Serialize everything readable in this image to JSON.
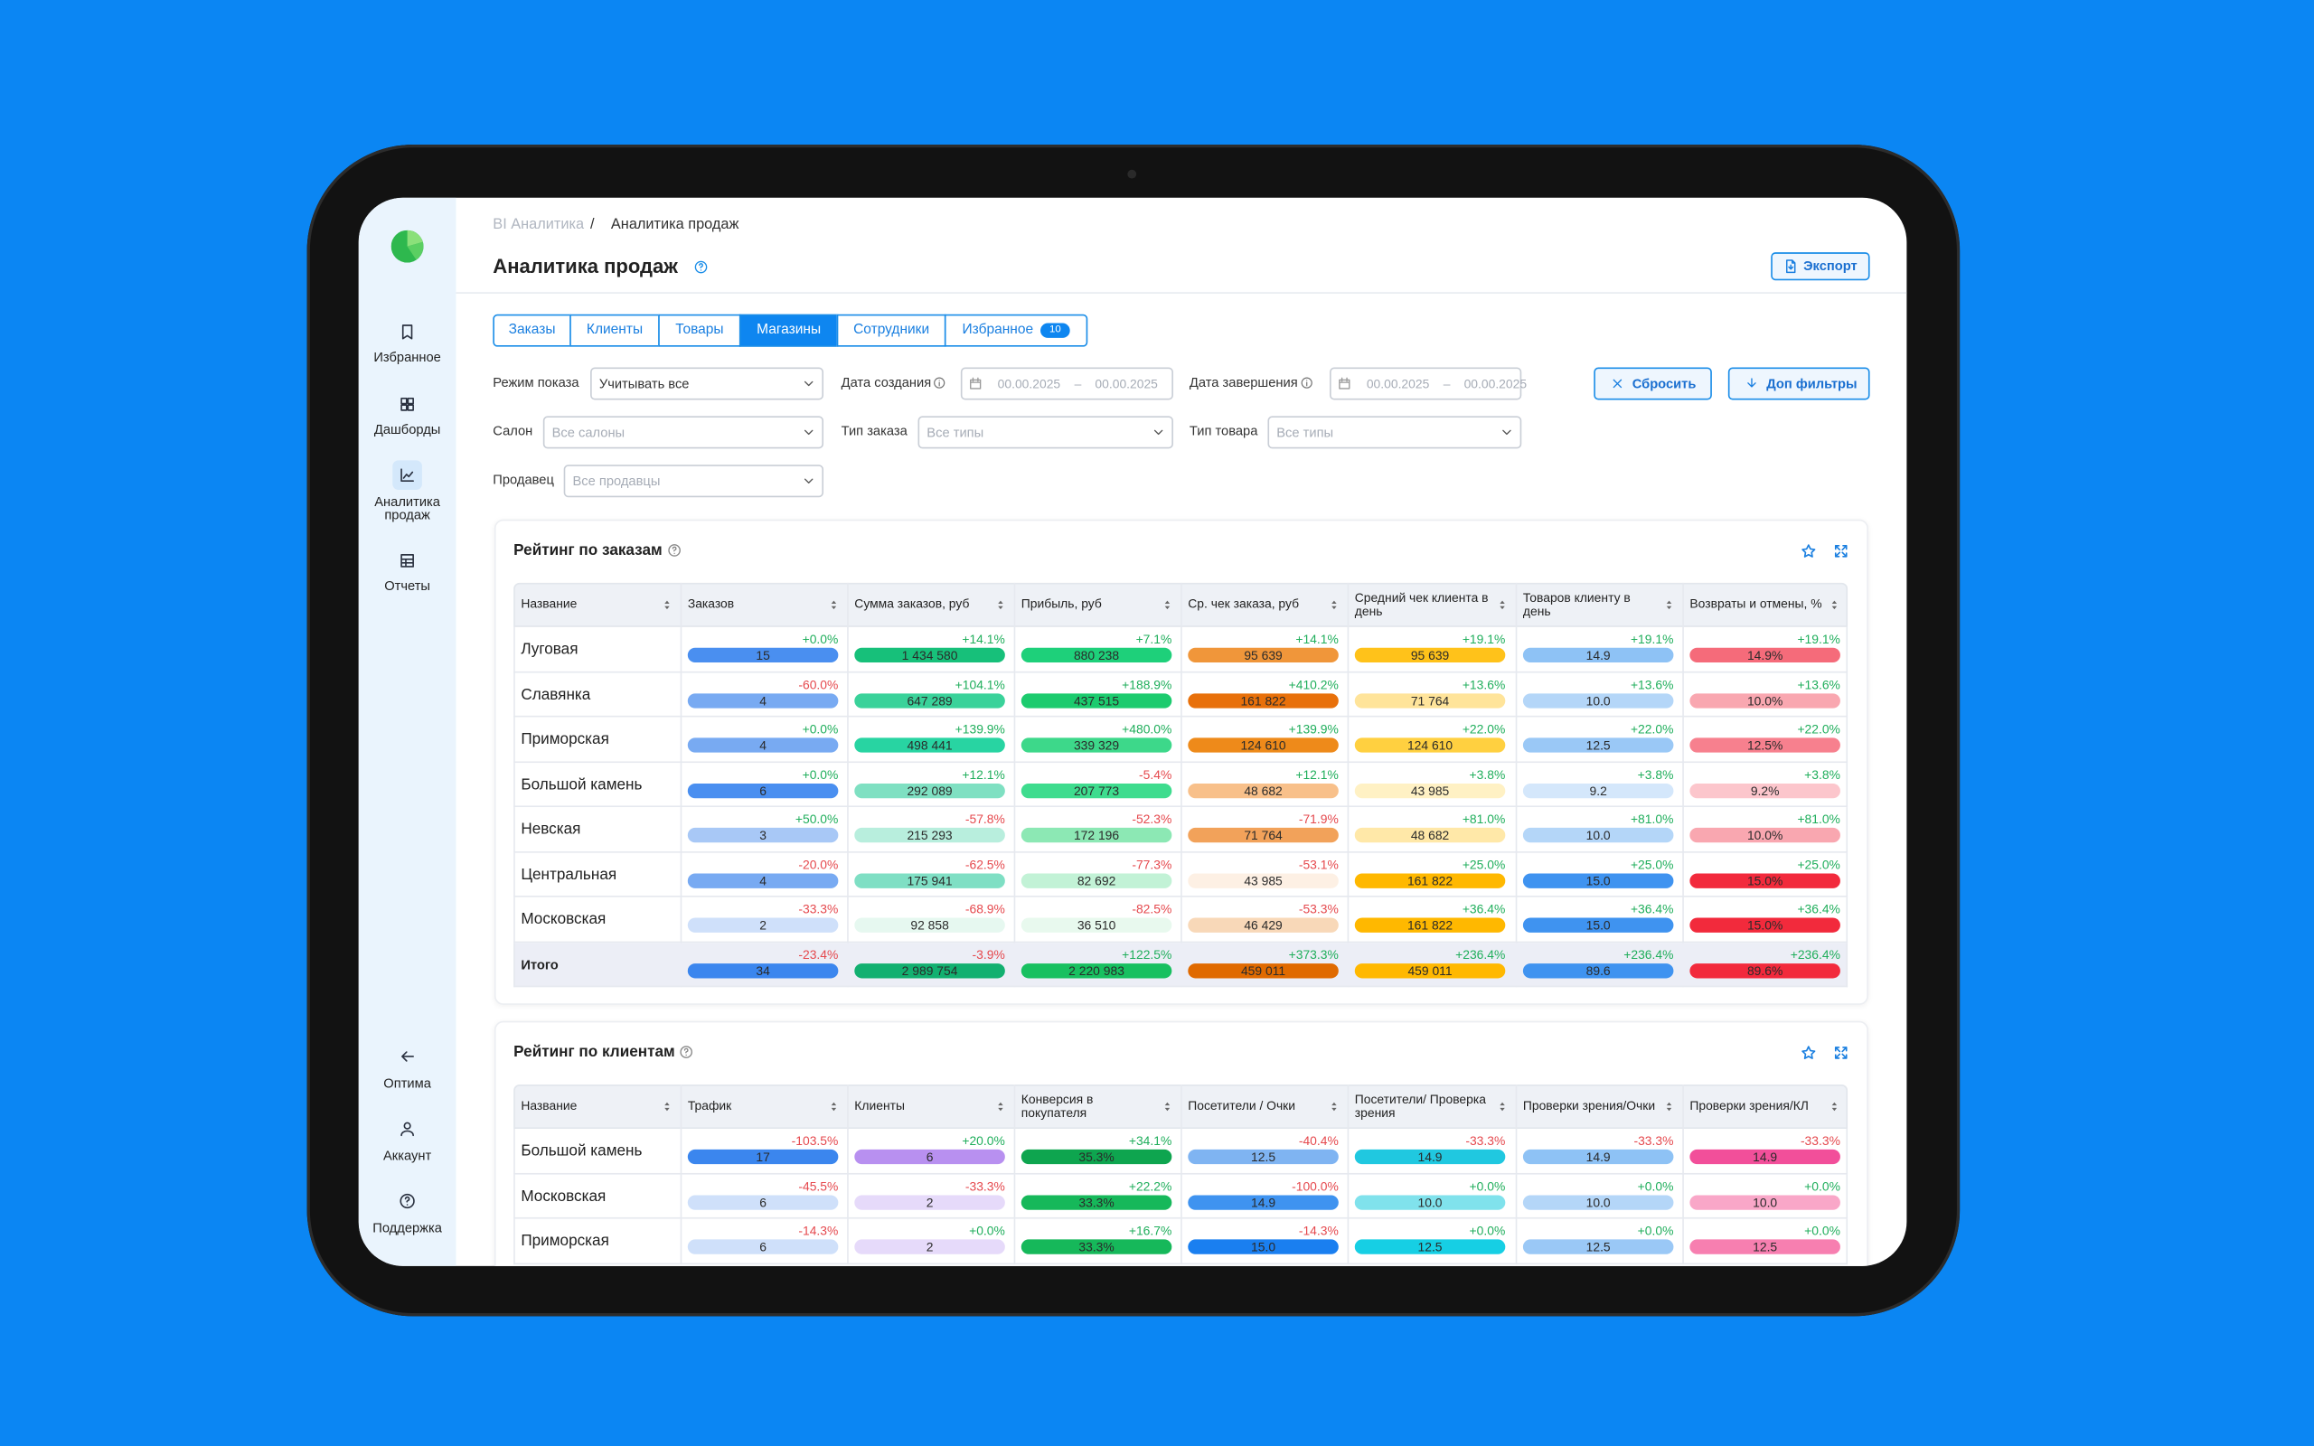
{
  "sidebar": {
    "top": [
      "Избранное",
      "Дашборды",
      "Аналитика продаж",
      "Отчеты"
    ],
    "bottom": [
      "Оптима",
      "Аккаунт",
      "Поддержка"
    ],
    "active": 2
  },
  "breadcrumb": [
    "BI Аналитика",
    "/",
    "Аналитика продаж"
  ],
  "title": "Аналитика продаж",
  "export": "Экспорт",
  "tabs": [
    "Заказы",
    "Клиенты",
    "Товары",
    "Магазины",
    "Сотрудники",
    "Избранное"
  ],
  "active_tab": 3,
  "tab_badge": "10",
  "filters": {
    "selects": [
      {
        "label": "Режим показа",
        "value": "Учитывать все"
      },
      {
        "label": "Салон",
        "value": "Все салоны"
      },
      {
        "label": "Тип заказа",
        "value": "Все типы"
      },
      {
        "label": "Тип товара",
        "value": "Все типы"
      },
      {
        "label": "Продавец",
        "value": "Все продавцы"
      }
    ],
    "dates": [
      {
        "label": "Дата создания",
        "from": "00.00.2025",
        "to": "00.00.2025"
      },
      {
        "label": "Дата завершения",
        "from": "00.00.2025",
        "to": "00.00.2025"
      }
    ],
    "range_sep": "–",
    "reset": "Сбросить",
    "more": "Доп фильтры"
  },
  "tables": [
    {
      "title": "Рейтинг по заказам",
      "columns": [
        "Название",
        "Заказов",
        "Сумма заказов, руб",
        "Прибыль, руб",
        "Ср. чек заказа, руб",
        "Средний чек клиента в день",
        "Товаров клиенту в день",
        "Возвраты и отмены, %"
      ],
      "rows": [
        {
          "name": "Луговая",
          "cells": [
            [
              "+0.0%",
              "15",
              "#4a8ff0"
            ],
            [
              "+14.1%",
              "1 434 580",
              "#17c07a"
            ],
            [
              "+7.1%",
              "880 238",
              "#1ed07a"
            ],
            [
              "+14.1%",
              "95 639",
              "#f0963a"
            ],
            [
              "+19.1%",
              "95 639",
              "#ffc21a"
            ],
            [
              "+19.1%",
              "14.9",
              "#8ec2f5"
            ],
            [
              "+19.1%",
              "14.9%",
              "#f56b7a"
            ]
          ]
        },
        {
          "name": "Славянка",
          "cells": [
            [
              "-60.0%",
              "4",
              "#78aaf2"
            ],
            [
              "+104.1%",
              "647 289",
              "#3ad29a"
            ],
            [
              "+188.9%",
              "437 515",
              "#1ccb6e"
            ],
            [
              "+410.2%",
              "161 822",
              "#e8700a"
            ],
            [
              "+13.6%",
              "71 764",
              "#ffe49a"
            ],
            [
              "+13.6%",
              "10.0",
              "#b4d6f8"
            ],
            [
              "+13.6%",
              "10.0%",
              "#f9a7b0"
            ]
          ]
        },
        {
          "name": "Приморская",
          "cells": [
            [
              "+0.0%",
              "4",
              "#78aaf2"
            ],
            [
              "+139.9%",
              "498 441",
              "#28d4a2"
            ],
            [
              "+480.0%",
              "339 329",
              "#3dd88a"
            ],
            [
              "+139.9%",
              "124 610",
              "#ee8a1a"
            ],
            [
              "+22.0%",
              "124 610",
              "#ffd040"
            ],
            [
              "+22.0%",
              "12.5",
              "#9ac8f6"
            ],
            [
              "+22.0%",
              "12.5%",
              "#f7808e"
            ]
          ]
        },
        {
          "name": "Большой камень",
          "cells": [
            [
              "+0.0%",
              "6",
              "#4a8ff0"
            ],
            [
              "+12.1%",
              "292 089",
              "#7fe0c2"
            ],
            [
              "-5.4%",
              "207 773",
              "#3edc8e"
            ],
            [
              "+12.1%",
              "48 682",
              "#f8c08a"
            ],
            [
              "+3.8%",
              "43 985",
              "#fff1c4"
            ],
            [
              "+3.8%",
              "9.2",
              "#d4e7fb"
            ],
            [
              "+3.8%",
              "9.2%",
              "#fcc6cc"
            ]
          ]
        },
        {
          "name": "Невская",
          "cells": [
            [
              "+50.0%",
              "3",
              "#a8c8f6"
            ],
            [
              "-57.8%",
              "215 293",
              "#b8eedd"
            ],
            [
              "-52.3%",
              "172 196",
              "#8ce8b4"
            ],
            [
              "-71.9%",
              "71 764",
              "#f2a25a"
            ],
            [
              "+81.0%",
              "48 682",
              "#ffe8a8"
            ],
            [
              "+81.0%",
              "10.0",
              "#b4d6f8"
            ],
            [
              "+81.0%",
              "10.0%",
              "#f9a7b0"
            ]
          ]
        },
        {
          "name": "Центральная",
          "cells": [
            [
              "-20.0%",
              "4",
              "#78aaf2"
            ],
            [
              "-62.5%",
              "175 941",
              "#7fdfc4"
            ],
            [
              "-77.3%",
              "82 692",
              "#c2f2d6"
            ],
            [
              "-53.1%",
              "43 985",
              "#fdf0e4"
            ],
            [
              "+25.0%",
              "161 822",
              "#ffb800"
            ],
            [
              "+25.0%",
              "15.0",
              "#3f93f0"
            ],
            [
              "+25.0%",
              "15.0%",
              "#f22a3c"
            ]
          ]
        },
        {
          "name": "Московская",
          "cells": [
            [
              "-33.3%",
              "2",
              "#cfe0fa"
            ],
            [
              "-68.9%",
              "92 858",
              "#e6f8f0"
            ],
            [
              "-82.5%",
              "36 510",
              "#e8f9ee"
            ],
            [
              "-53.3%",
              "46 429",
              "#f8d8b8"
            ],
            [
              "+36.4%",
              "161 822",
              "#ffb800"
            ],
            [
              "+36.4%",
              "15.0",
              "#3f93f0"
            ],
            [
              "+36.4%",
              "15.0%",
              "#f22a3c"
            ]
          ]
        }
      ],
      "total_row": {
        "name": "Итого",
        "cells": [
          [
            "-23.4%",
            "34",
            "#3b86ee"
          ],
          [
            "-3.9%",
            "2 989 754",
            "#12b070"
          ],
          [
            "+122.5%",
            "2 220 983",
            "#18c060"
          ],
          [
            "+373.3%",
            "459 011",
            "#e06a00"
          ],
          [
            "+236.4%",
            "459 011",
            "#ffb800"
          ],
          [
            "+236.4%",
            "89.6",
            "#3f93f0"
          ],
          [
            "+236.4%",
            "89.6%",
            "#f22a3c"
          ]
        ]
      }
    },
    {
      "title": "Рейтинг по клиентам",
      "columns": [
        "Название",
        "Трафик",
        "Клиенты",
        "Конверсия в покупателя",
        "Посетители / Очки",
        "Посетители/ Проверка зрения",
        "Проверки зрения/Очки",
        "Проверки зрения/КЛ"
      ],
      "rows": [
        {
          "name": "Большой камень",
          "cells": [
            [
              "-103.5%",
              "17",
              "#3b86ee"
            ],
            [
              "+20.0%",
              "6",
              "#b890f0"
            ],
            [
              "+34.1%",
              "35.3%",
              "#0ea54f"
            ],
            [
              "-40.4%",
              "12.5",
              "#7fb4f2"
            ],
            [
              "-33.3%",
              "14.9",
              "#20c8e0"
            ],
            [
              "-33.3%",
              "14.9",
              "#8ec2f5"
            ],
            [
              "-33.3%",
              "14.9",
              "#f24f9a"
            ]
          ]
        },
        {
          "name": "Московская",
          "cells": [
            [
              "-45.5%",
              "6",
              "#cfe0fa"
            ],
            [
              "-33.3%",
              "2",
              "#e6dafa"
            ],
            [
              "+22.2%",
              "33.3%",
              "#16b85a"
            ],
            [
              "-100.0%",
              "14.9",
              "#3f93f0"
            ],
            [
              "+0.0%",
              "10.0",
              "#80e2ec"
            ],
            [
              "+0.0%",
              "10.0",
              "#b4d6f8"
            ],
            [
              "+0.0%",
              "10.0",
              "#f9a7c8"
            ]
          ]
        },
        {
          "name": "Приморская",
          "cells": [
            [
              "-14.3%",
              "6",
              "#cfe0fa"
            ],
            [
              "+0.0%",
              "2",
              "#e6dafa"
            ],
            [
              "+16.7%",
              "33.3%",
              "#16b85a"
            ],
            [
              "-14.3%",
              "15.0",
              "#1a7ff0"
            ],
            [
              "+0.0%",
              "12.5",
              "#16cfe4"
            ],
            [
              "+0.0%",
              "12.5",
              "#9ac8f6"
            ],
            [
              "+0.0%",
              "12.5",
              "#f77fb0"
            ]
          ]
        }
      ]
    }
  ]
}
